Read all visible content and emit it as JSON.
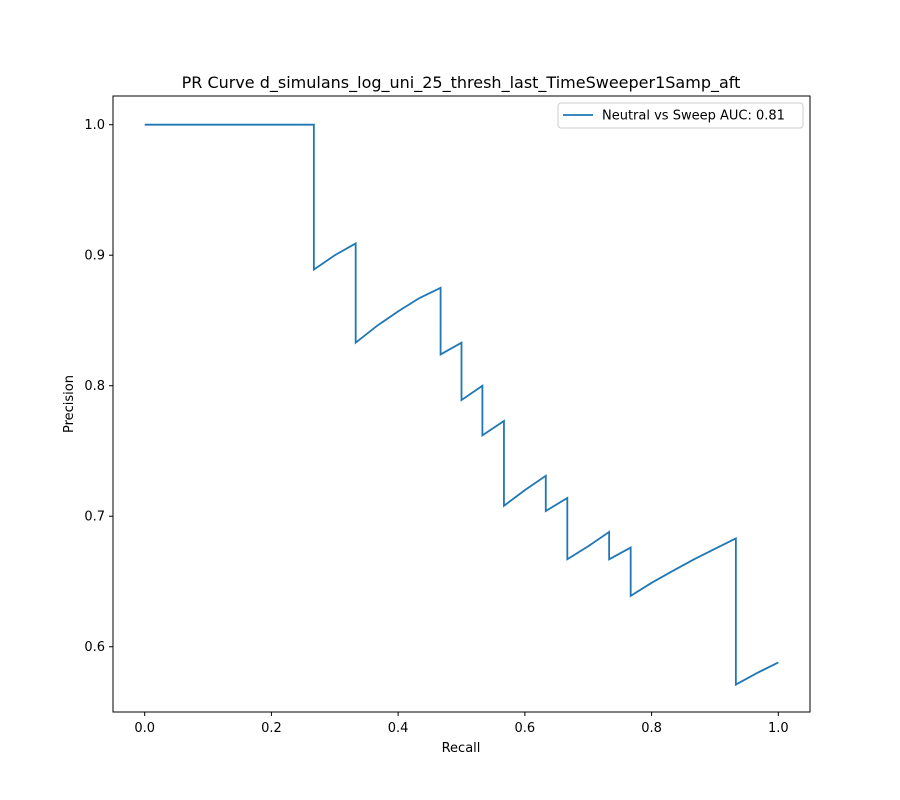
{
  "chart_data": {
    "type": "line",
    "title": "PR Curve d_simulans_log_uni_25_thresh_last_TimeSweeper1Samp_aft",
    "xlabel": "Recall",
    "ylabel": "Precision",
    "xlim": [
      -0.05,
      1.05
    ],
    "ylim": [
      0.55,
      1.022
    ],
    "x_ticks": [
      0.0,
      0.2,
      0.4,
      0.6,
      0.8,
      1.0
    ],
    "x_tick_labels": [
      "0.0",
      "0.2",
      "0.4",
      "0.6",
      "0.8",
      "1.0"
    ],
    "y_ticks": [
      0.6,
      0.7,
      0.8,
      0.9,
      1.0
    ],
    "y_tick_labels": [
      "0.6",
      "0.7",
      "0.8",
      "0.9",
      "1.0"
    ],
    "grid": false,
    "legend_position": "top-right",
    "series": [
      {
        "name": "Neutral vs Sweep AUC: 0.81",
        "color": "#1f77b4",
        "x": [
          0.0,
          0.267,
          0.267,
          0.3,
          0.333,
          0.333,
          0.367,
          0.4,
          0.433,
          0.467,
          0.467,
          0.5,
          0.5,
          0.533,
          0.533,
          0.567,
          0.567,
          0.6,
          0.633,
          0.633,
          0.667,
          0.667,
          0.7,
          0.733,
          0.733,
          0.767,
          0.767,
          0.8,
          0.833,
          0.867,
          0.9,
          0.933,
          0.933,
          0.967,
          1.0
        ],
        "y": [
          1.0,
          1.0,
          0.889,
          0.9,
          0.909,
          0.833,
          0.846,
          0.857,
          0.867,
          0.875,
          0.824,
          0.833,
          0.789,
          0.8,
          0.762,
          0.773,
          0.708,
          0.72,
          0.731,
          0.704,
          0.714,
          0.667,
          0.677,
          0.688,
          0.667,
          0.676,
          0.639,
          0.649,
          0.658,
          0.667,
          0.675,
          0.683,
          0.571,
          0.58,
          0.588
        ]
      }
    ]
  }
}
